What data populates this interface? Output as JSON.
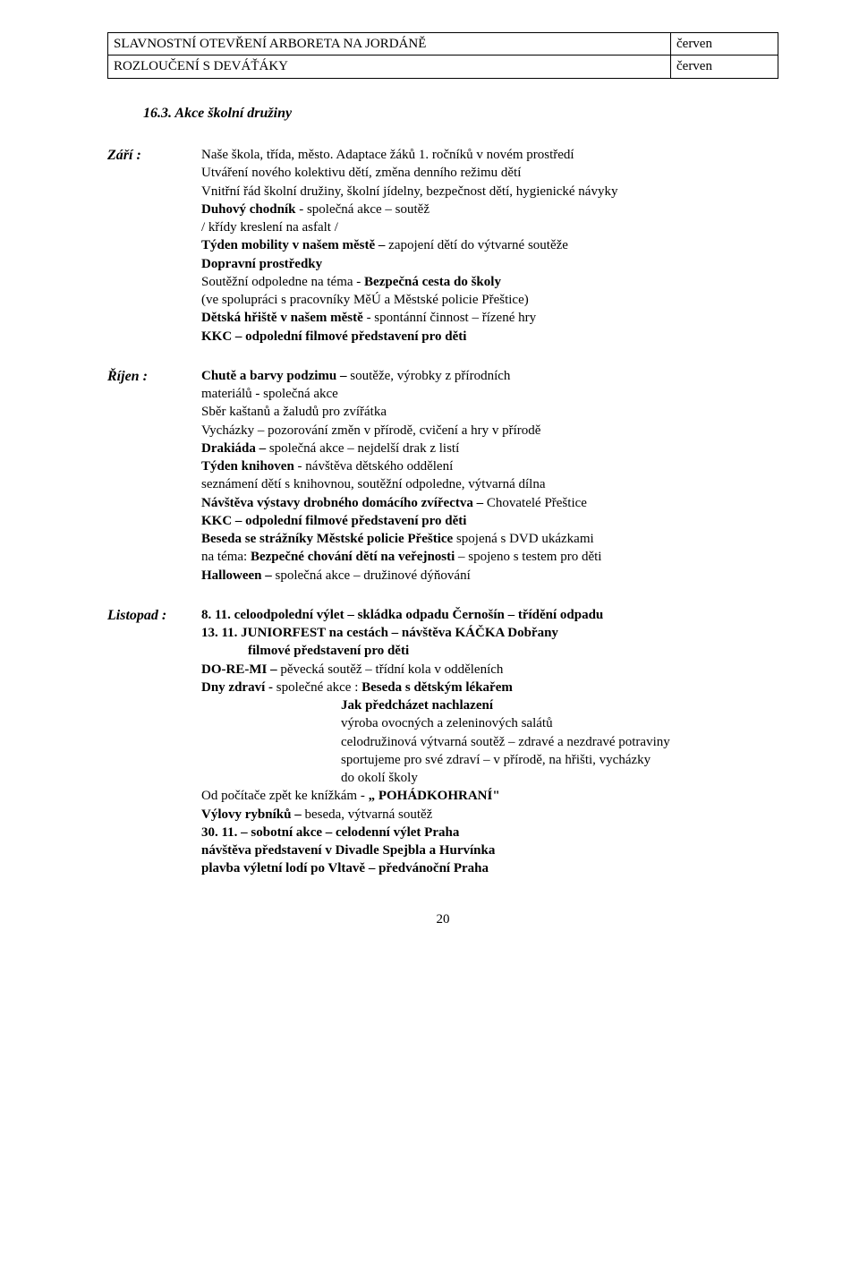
{
  "topTable": {
    "rows": [
      {
        "label": "SLAVNOSTNÍ OTEVŘENÍ ARBORETA NA JORDÁNĚ",
        "month": "červen"
      },
      {
        "label": "ROZLOUČENÍ S DEVÁŤÁKY",
        "month": "červen"
      }
    ]
  },
  "sectionHeading": "16.3.   Akce školní družiny",
  "zari": {
    "label": "Září :",
    "l1": "Naše škola, třída, město. Adaptace žáků 1. ročníků v novém prostředí",
    "l2": "Utváření nového kolektivu dětí, změna denního režimu dětí",
    "l3": "Vnitřní řád školní družiny, školní jídelny, bezpečnost dětí, hygienické návyky",
    "l4a": "Duhový chodník",
    "l4b": " -  společná akce – soutěž",
    "l5": "/ křídy kreslení na asfalt /",
    "l6a": "Týden mobility v našem městě – ",
    "l6b": "zapojení dětí do výtvarné soutěže",
    "l7": "Dopravní prostředky",
    "l8a": "Soutěžní odpoledne na téma  - ",
    "l8b": "Bezpečná cesta do školy",
    "l9": "(ve spolupráci s pracovníky MěÚ a Městské policie Přeštice)",
    "l10a": "Dětská hřiště v našem městě",
    "l10b": " -  spontánní činnost – řízené hry",
    "l11": "KKC – odpolední filmové představení pro děti"
  },
  "rijen": {
    "label": "Říjen :",
    "l1a": "Chutě a barvy podzimu – ",
    "l1b": "soutěže,  výrobky z přírodních",
    "l2": "materiálů  - společná akce",
    "l3": "Sběr kaštanů a žaludů pro zvířátka",
    "l4": "Vycházky – pozorování změn v přírodě, cvičení a hry v přírodě",
    "l5a": "Drakiáda – ",
    "l5b": "společná akce – nejdelší drak z listí",
    "l6a": "Týden knihoven",
    "l6b": " - návštěva dětského oddělení",
    "l7": "seznámení dětí s knihovnou, soutěžní odpoledne, výtvarná dílna",
    "l8a": "Návštěva výstavy drobného domácího zvířectva – ",
    "l8b": "Chovatelé Přeštice",
    "l9": "KKC – odpolední filmové představení pro děti",
    "l10a": "Beseda se strážníky Městské policie Přeštice ",
    "l10b": "spojená s DVD ukázkami",
    "l11a": "na téma: ",
    "l11b": "Bezpečné chování dětí na veřejnosti",
    "l11c": " – spojeno s testem pro děti",
    "l12a": "Halloween – ",
    "l12b": "společná akce – družinové dýňování"
  },
  "listopad": {
    "label": "Listopad :",
    "l1": "8. 11. celoodpolední výlet – skládka odpadu Černošín – třídění odpadu",
    "l2": "13. 11. JUNIORFEST na cestách – návštěva KÁČKA Dobřany",
    "l3": "filmové představení pro děti",
    "l4a": "DO-RE-MI – ",
    "l4b": "pěvecká soutěž – třídní kola v odděleních",
    "l5a": "Dny  zdraví  - ",
    "l5b": "společné akce :  ",
    "l5c": "Beseda s dětským lékařem",
    "l6": "Jak předcházet nachlazení",
    "l7": "výroba ovocných a zeleninových salátů",
    "l8": "celodružinová výtvarná soutěž – zdravé a nezdravé potraviny",
    "l9": "sportujeme pro své zdraví – v přírodě, na hřišti, vycházky",
    "l10": "do okolí školy",
    "l11a": "Od počítače zpět ke knížkám  -  ",
    "l11b": "„ POHÁDKOHRANÍ\"",
    "l12a": "Výlovy rybníků – ",
    "l12b": "beseda, výtvarná soutěž",
    "l13": "30. 11. – sobotní akce – celodenní výlet Praha",
    "l14": "návštěva představení v Divadle Spejbla a Hurvínka",
    "l15": "plavba výletní lodí po Vltavě – předvánoční Praha"
  },
  "pageNumber": "20"
}
